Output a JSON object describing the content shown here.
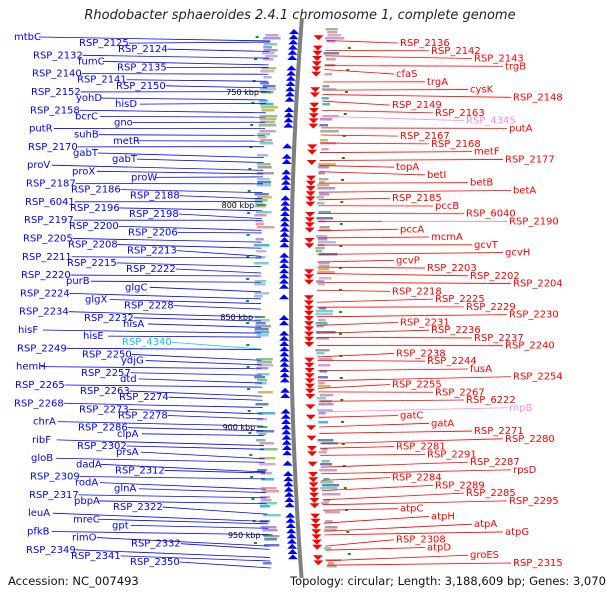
{
  "title": "Rhodobacter sphaeroides 2.4.1 chromosome 1, complete genome",
  "footer": {
    "accession": "Accession: NC_007493",
    "summary": "Topology: circular; Length: 3,188,609 bp; Genes: 3,070"
  },
  "colors": {
    "forward": "#0000ff",
    "reverse": "#ff0000",
    "highlight_forward": "#00c8ff",
    "highlight_reverse": "#ff8cd2",
    "backbone": "#7f7f7f",
    "tick": "#00a000"
  },
  "ticks": [
    "750 kbp",
    "800 kbp",
    "850 kbp",
    "900 kbp",
    "950 kbp"
  ],
  "left_labels": [
    "mtbC",
    "RSP_2125",
    "RSP_2124",
    "RSP_2132",
    "fumC",
    "RSP_2135",
    "RSP_2140",
    "RSP_2141",
    "RSP_2150",
    "RSP_2152",
    "yohD",
    "hisD",
    "RSP_2158",
    "bcrC",
    "gno",
    "putR",
    "suhB",
    "metR",
    "RSP_2170",
    "gabT",
    "gabT",
    "proV",
    "proX",
    "proW",
    "RSP_2187",
    "RSP_2186",
    "RSP_2188",
    "RSP_6041",
    "RSP_2196",
    "RSP_2198",
    "RSP_2197",
    "RSP_2200",
    "RSP_2206",
    "RSP_2205",
    "RSP_2208",
    "RSP_2213",
    "RSP_2211",
    "RSP_2215",
    "RSP_2222",
    "RSP_2220",
    "purB",
    "glgC",
    "RSP_2224",
    "glgX",
    "RSP_2228",
    "RSP_2234",
    "RSP_2232",
    "hisA",
    "hisF",
    "hisE",
    "RSP_4340",
    "RSP_2249",
    "RSP_2250",
    "ydjG",
    "hemH",
    "RSP_2257",
    "dtd",
    "RSP_2265",
    "RSP_2263",
    "RSP_2274",
    "RSP_2268",
    "RSP_2273",
    "RSP_2278",
    "chrA",
    "RSP_2286",
    "clpA",
    "ribF",
    "RSP_2302",
    "prsA",
    "gloB",
    "dadA",
    "RSP_2312",
    "RSP_2309",
    "rodA",
    "glnA",
    "RSP_2317",
    "pbpA",
    "RSP_2322",
    "leuA",
    "mreC",
    "gpt",
    "pfkB",
    "rimO",
    "RSP_2332",
    "RSP_2349",
    "RSP_2341",
    "RSP_2350"
  ],
  "right_labels": [
    "RSP_2136",
    "RSP_2142",
    "RSP_2143",
    "trgB",
    "cfaS",
    "trgA",
    "cysK",
    "RSP_2148",
    "RSP_2149",
    "RSP_2163",
    "RSP_4345",
    "putA",
    "RSP_2167",
    "RSP_2168",
    "metF",
    "RSP_2177",
    "topA",
    "betI",
    "betB",
    "betA",
    "RSP_2185",
    "pccB",
    "RSP_6040",
    "RSP_2190",
    "pccA",
    "mcmA",
    "gcvT",
    "gcvH",
    "gcvP",
    "RSP_2203",
    "RSP_2202",
    "RSP_2204",
    "RSP_2218",
    "RSP_2225",
    "RSP_2229",
    "RSP_2230",
    "RSP_2231",
    "RSP_2236",
    "RSP_2237",
    "RSP_2240",
    "RSP_2238",
    "RSP_2244",
    "fusA",
    "RSP_2254",
    "RSP_2255",
    "RSP_2267",
    "RSP_6222",
    "rnpB",
    "gatC",
    "gatA",
    "RSP_2271",
    "RSP_2280",
    "RSP_2281",
    "RSP_2291",
    "RSP_2287",
    "rpsD",
    "RSP_2284",
    "RSP_2289",
    "RSP_2285",
    "RSP_2295",
    "atpC",
    "atpH",
    "atpA",
    "atpG",
    "RSP_2308",
    "atpD",
    "groES",
    "RSP_2315"
  ]
}
